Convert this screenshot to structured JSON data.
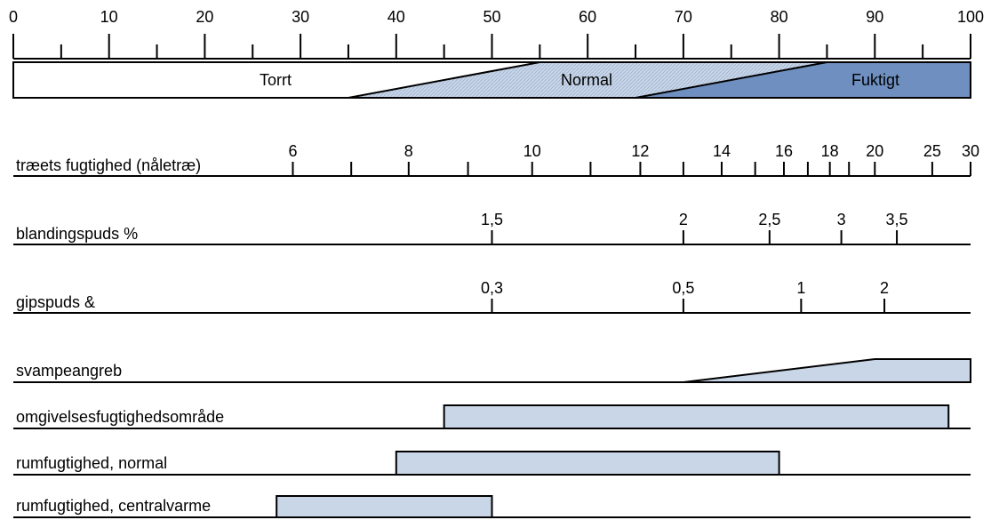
{
  "colors": {
    "light_band": "#c9d6e8",
    "fuktigt_band": "#6e8fbf",
    "line": "#000000"
  },
  "scale": {
    "ticks": [
      0,
      10,
      20,
      30,
      40,
      50,
      60,
      70,
      80,
      90,
      100
    ],
    "minor_ticks": [
      5,
      15,
      25,
      35,
      45,
      55,
      65,
      75,
      85,
      95
    ],
    "zones": [
      {
        "label": "Torrt",
        "fill": "white"
      },
      {
        "label": "Normal",
        "fill": "light"
      },
      {
        "label": "Fuktigt",
        "fill": "dark"
      }
    ],
    "zone_boundaries": [
      {
        "low": 35,
        "high": 55
      },
      {
        "low": 65,
        "high": 85
      }
    ]
  },
  "rows": [
    {
      "label": "træets fugtighed (nåletræ)",
      "ticks": [
        {
          "pos": 29.2,
          "label": "6"
        },
        {
          "pos": 35.3,
          "label": ""
        },
        {
          "pos": 41.3,
          "label": "8"
        },
        {
          "pos": 47.5,
          "label": ""
        },
        {
          "pos": 54.2,
          "label": "10"
        },
        {
          "pos": 60.3,
          "label": ""
        },
        {
          "pos": 65.5,
          "label": "12"
        },
        {
          "pos": 70.0,
          "label": ""
        },
        {
          "pos": 74.0,
          "label": "14"
        },
        {
          "pos": 77.5,
          "label": ""
        },
        {
          "pos": 80.5,
          "label": "16"
        },
        {
          "pos": 83.0,
          "label": ""
        },
        {
          "pos": 85.3,
          "label": "18"
        },
        {
          "pos": 87.3,
          "label": ""
        },
        {
          "pos": 90.0,
          "label": "20"
        },
        {
          "pos": 96.0,
          "label": "25"
        },
        {
          "pos": 100,
          "label": "30"
        }
      ]
    },
    {
      "label": "blandingspuds %",
      "ticks": [
        {
          "pos": 50.0,
          "label": "1,5"
        },
        {
          "pos": 70.0,
          "label": "2"
        },
        {
          "pos": 79.0,
          "label": "2,5"
        },
        {
          "pos": 86.5,
          "label": "3"
        },
        {
          "pos": 92.3,
          "label": "3,5"
        }
      ]
    },
    {
      "label": "gipspuds &",
      "ticks": [
        {
          "pos": 50.0,
          "label": "0,3"
        },
        {
          "pos": 70.0,
          "label": "0,5"
        },
        {
          "pos": 82.3,
          "label": "1"
        },
        {
          "pos": 91.0,
          "label": "2"
        }
      ]
    }
  ],
  "bars": [
    {
      "label": "svampeangreb",
      "shape": "wedge",
      "start": 70,
      "peak": 90,
      "end": 100
    },
    {
      "label": "omgivelsesfugtighedsområde",
      "shape": "box",
      "start": 45,
      "end": 97.7
    },
    {
      "label": "rumfugtighed, normal",
      "shape": "box",
      "start": 40,
      "end": 80
    },
    {
      "label": "rumfugtighed, centralvarme",
      "shape": "box",
      "start": 27.5,
      "end": 50
    }
  ]
}
